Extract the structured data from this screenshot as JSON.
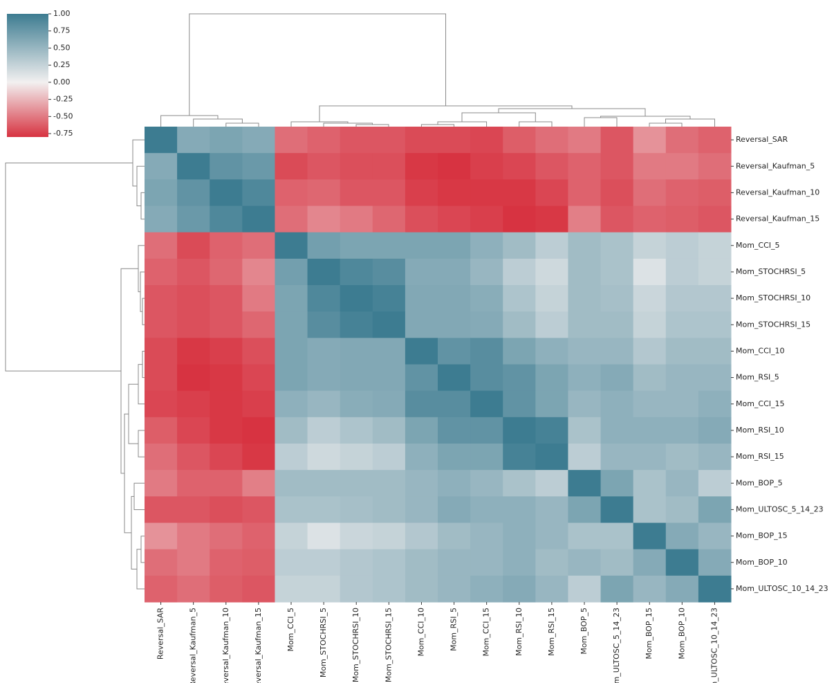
{
  "chart_data": {
    "type": "heatmap",
    "labels": [
      "Reversal_SAR",
      "Reversal_Kaufman_5",
      "Reversal_Kaufman_10",
      "Reversal_Kaufman_15",
      "Mom_CCI_5",
      "Mom_STOCHRSI_5",
      "Mom_STOCHRSI_10",
      "Mom_STOCHRSI_15",
      "Mom_CCI_10",
      "Mom_RSI_5",
      "Mom_CCI_15",
      "Mom_RSI_10",
      "Mom_RSI_15",
      "Mom_BOP_5",
      "Mom_ULTOSC_5_14_23",
      "Mom_BOP_15",
      "Mom_BOP_10",
      "Mom_ULTOSC_10_14_23"
    ],
    "values": [
      [
        1,
        0.6,
        0.65,
        0.6,
        -0.55,
        -0.6,
        -0.65,
        -0.65,
        -0.7,
        -0.7,
        -0.72,
        -0.62,
        -0.55,
        -0.5,
        -0.65,
        -0.4,
        -0.55,
        -0.6
      ],
      [
        0.6,
        1,
        0.8,
        0.75,
        -0.7,
        -0.65,
        -0.68,
        -0.68,
        -0.78,
        -0.8,
        -0.75,
        -0.72,
        -0.65,
        -0.6,
        -0.65,
        -0.5,
        -0.5,
        -0.55
      ],
      [
        0.65,
        0.8,
        1,
        0.9,
        -0.6,
        -0.58,
        -0.65,
        -0.65,
        -0.75,
        -0.78,
        -0.78,
        -0.78,
        -0.72,
        -0.6,
        -0.68,
        -0.55,
        -0.6,
        -0.62
      ],
      [
        0.6,
        0.75,
        0.9,
        1,
        -0.55,
        -0.45,
        -0.5,
        -0.58,
        -0.68,
        -0.72,
        -0.75,
        -0.8,
        -0.78,
        -0.48,
        -0.65,
        -0.6,
        -0.62,
        -0.65
      ],
      [
        -0.55,
        -0.7,
        -0.6,
        -0.55,
        1,
        0.7,
        0.65,
        0.65,
        0.65,
        0.65,
        0.55,
        0.45,
        0.3,
        0.45,
        0.4,
        0.25,
        0.3,
        0.25
      ],
      [
        -0.6,
        -0.65,
        -0.58,
        -0.45,
        0.7,
        1,
        0.9,
        0.85,
        0.6,
        0.6,
        0.5,
        0.3,
        0.2,
        0.45,
        0.4,
        0.12,
        0.3,
        0.25
      ],
      [
        -0.65,
        -0.68,
        -0.65,
        -0.5,
        0.65,
        0.9,
        1,
        0.95,
        0.62,
        0.62,
        0.58,
        0.38,
        0.25,
        0.45,
        0.42,
        0.22,
        0.35,
        0.35
      ],
      [
        -0.65,
        -0.68,
        -0.65,
        -0.58,
        0.65,
        0.85,
        0.95,
        1,
        0.62,
        0.62,
        0.6,
        0.45,
        0.3,
        0.45,
        0.45,
        0.25,
        0.38,
        0.38
      ],
      [
        -0.7,
        -0.78,
        -0.75,
        -0.68,
        0.65,
        0.6,
        0.62,
        0.62,
        1,
        0.8,
        0.85,
        0.65,
        0.55,
        0.5,
        0.5,
        0.35,
        0.45,
        0.45
      ],
      [
        -0.7,
        -0.8,
        -0.78,
        -0.72,
        0.65,
        0.6,
        0.62,
        0.62,
        0.8,
        1,
        0.85,
        0.8,
        0.65,
        0.55,
        0.6,
        0.45,
        0.5,
        0.5
      ],
      [
        -0.72,
        -0.75,
        -0.78,
        -0.75,
        0.55,
        0.5,
        0.58,
        0.6,
        0.85,
        0.85,
        1,
        0.8,
        0.65,
        0.5,
        0.55,
        0.5,
        0.5,
        0.55
      ],
      [
        -0.62,
        -0.72,
        -0.78,
        -0.8,
        0.45,
        0.3,
        0.38,
        0.45,
        0.65,
        0.8,
        0.8,
        1,
        0.95,
        0.4,
        0.55,
        0.55,
        0.55,
        0.6
      ],
      [
        -0.55,
        -0.65,
        -0.72,
        -0.78,
        0.3,
        0.2,
        0.25,
        0.3,
        0.55,
        0.65,
        0.65,
        0.95,
        1,
        0.3,
        0.5,
        0.5,
        0.45,
        0.5
      ],
      [
        -0.5,
        -0.6,
        -0.6,
        -0.48,
        0.45,
        0.45,
        0.45,
        0.45,
        0.5,
        0.55,
        0.5,
        0.4,
        0.3,
        1,
        0.65,
        0.4,
        0.5,
        0.3
      ],
      [
        -0.65,
        -0.65,
        -0.68,
        -0.65,
        0.4,
        0.4,
        0.42,
        0.45,
        0.5,
        0.6,
        0.55,
        0.55,
        0.5,
        0.65,
        1,
        0.4,
        0.45,
        0.65
      ],
      [
        -0.4,
        -0.5,
        -0.55,
        -0.6,
        0.25,
        0.12,
        0.22,
        0.25,
        0.35,
        0.45,
        0.5,
        0.55,
        0.5,
        0.4,
        0.4,
        1,
        0.6,
        0.5
      ],
      [
        -0.55,
        -0.5,
        -0.6,
        -0.62,
        0.3,
        0.3,
        0.35,
        0.38,
        0.45,
        0.5,
        0.5,
        0.55,
        0.45,
        0.5,
        0.45,
        0.6,
        1,
        0.6
      ],
      [
        -0.6,
        -0.55,
        -0.62,
        -0.65,
        0.25,
        0.25,
        0.35,
        0.38,
        0.45,
        0.5,
        0.55,
        0.6,
        0.5,
        0.3,
        0.65,
        0.5,
        0.6,
        1
      ]
    ],
    "colors": [
      "#d73341",
      "#f2f0f0",
      "#3d7c91"
    ],
    "colorbar_lim": [
      -0.8,
      1
    ],
    "colorbar_ticks": [
      {
        "value": 1,
        "label": "1.00"
      },
      {
        "value": 0.75,
        "label": "0.75"
      },
      {
        "value": 0.5,
        "label": "0.50"
      },
      {
        "value": 0.25,
        "label": "0.25"
      },
      {
        "value": 0,
        "label": "0.00"
      },
      {
        "value": -0.25,
        "label": "-0.25"
      },
      {
        "value": -0.5,
        "label": "-0.50"
      },
      {
        "value": -0.75,
        "label": "-0.75"
      }
    ]
  }
}
